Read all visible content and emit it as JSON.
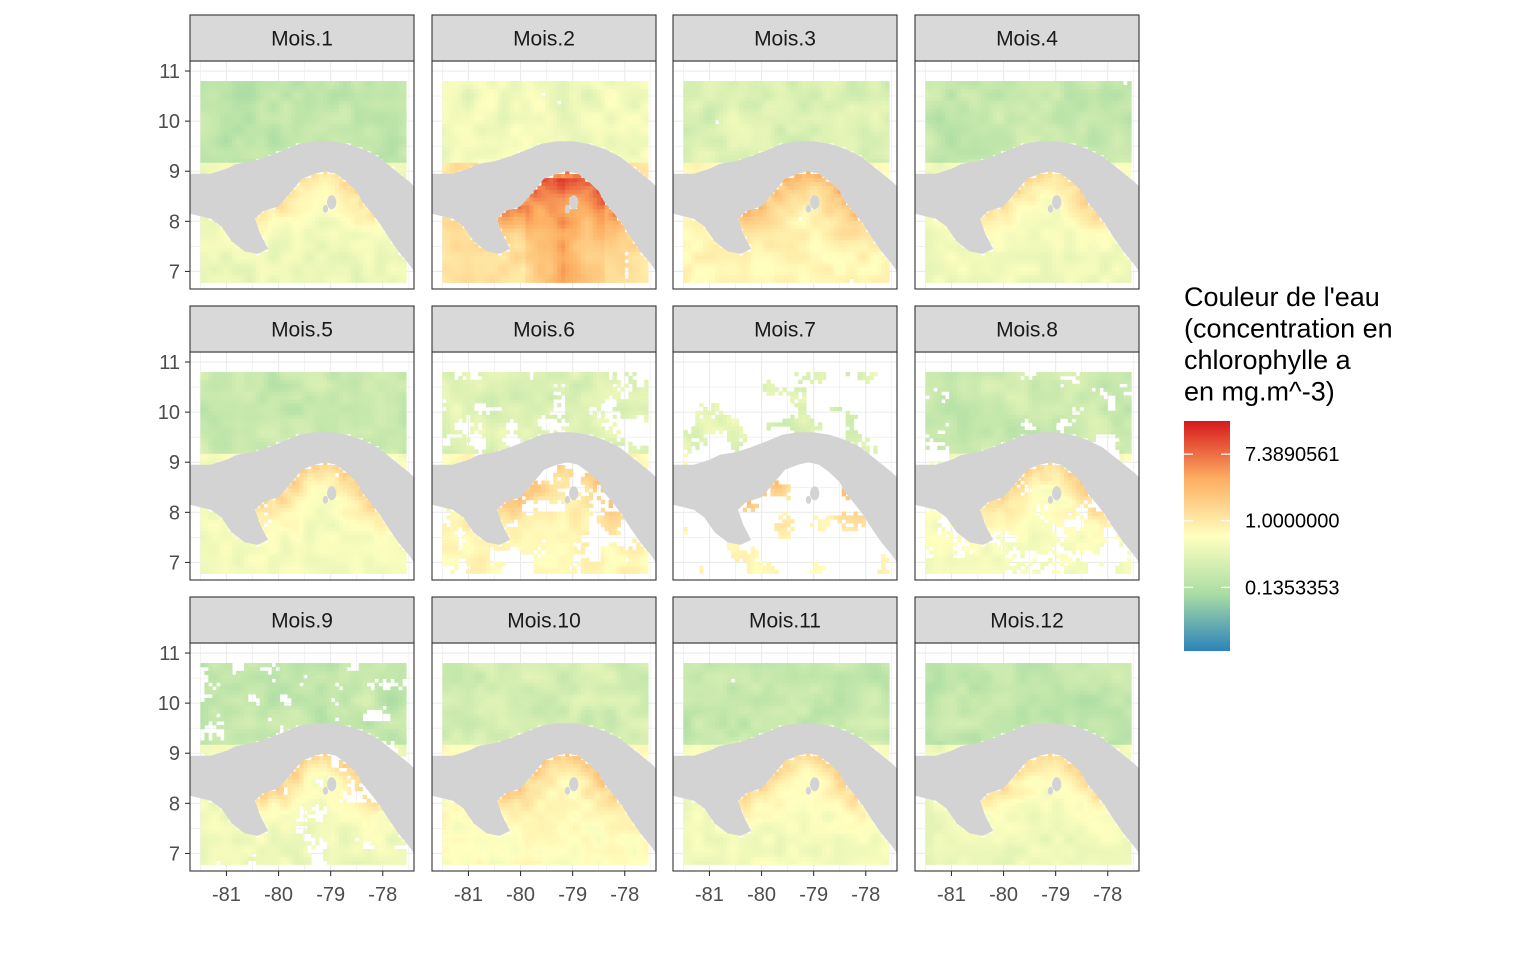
{
  "chart_data": {
    "type": "heatmap",
    "facets": [
      "Mois.1",
      "Mois.2",
      "Mois.3",
      "Mois.4",
      "Mois.5",
      "Mois.6",
      "Mois.7",
      "Mois.8",
      "Mois.9",
      "Mois.10",
      "Mois.11",
      "Mois.12"
    ],
    "facet_layout": {
      "rows": 3,
      "cols": 4
    },
    "xlim": [
      -81.7,
      -77.4
    ],
    "ylim": [
      6.65,
      11.2
    ],
    "x_ticks": [
      -81,
      -80,
      -79,
      -78
    ],
    "x_tick_labels": [
      "-81",
      "-80",
      "-79",
      "-78"
    ],
    "y_ticks": [
      7,
      8,
      9,
      10,
      11
    ],
    "y_tick_labels": [
      "7",
      "8",
      "9",
      "10",
      "11"
    ],
    "xlabel": "",
    "ylabel": "",
    "grid": true,
    "legend": {
      "title_lines": [
        "Couleur de l'eau",
        "(concentration en",
        "chlorophylle a",
        "en mg.m^-3)"
      ],
      "scale": "log",
      "breaks": [
        7.3890561,
        1.0,
        0.1353353
      ],
      "break_labels": [
        "7.3890561",
        "1.0000000",
        "0.1353353"
      ],
      "limits": [
        0.02,
        20
      ],
      "colors": [
        "#2b83ba",
        "#abdda4",
        "#ffffbf",
        "#fdae61",
        "#d7191c"
      ],
      "position": "right"
    },
    "land_color": "#d3d3d3",
    "panel_level_log": [
      -0.9,
      0.1,
      -0.35,
      -0.8,
      -0.75,
      -0.3,
      -0.3,
      -0.7,
      -0.85,
      -0.5,
      -0.75,
      -0.85
    ],
    "panel_coverage": [
      0.97,
      0.92,
      0.93,
      0.95,
      0.94,
      0.65,
      0.3,
      0.7,
      0.72,
      0.97,
      0.95,
      0.94
    ],
    "coastal_enrichment_log": [
      1.3,
      1.9,
      1.6,
      1.3,
      1.4,
      1.2,
      1.3,
      1.3,
      1.5,
      1.3,
      1.3,
      1.3
    ]
  }
}
